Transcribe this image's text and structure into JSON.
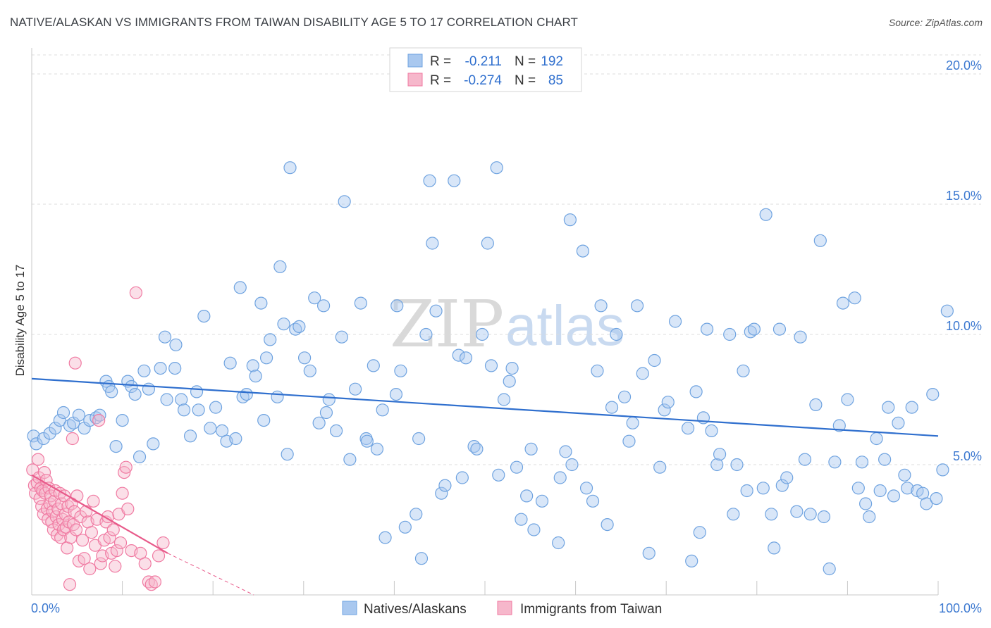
{
  "title": "NATIVE/ALASKAN VS IMMIGRANTS FROM TAIWAN DISABILITY AGE 5 TO 17 CORRELATION CHART",
  "source": "Source: ZipAtlas.com",
  "watermark": {
    "zip": "ZIP",
    "atlas": "atlas"
  },
  "colors": {
    "blue": "#6fa3e0",
    "blue_fill": "#a9c8ef",
    "blue_line": "#2f6fce",
    "pink": "#f07aa2",
    "pink_fill": "#f6b7cb",
    "pink_line": "#e85a8a",
    "tick_text": "#3b78d0"
  },
  "legend": {
    "r_label": "R =",
    "n_label": "N =",
    "rows": [
      {
        "r": "-0.211",
        "n": "192",
        "color": "blue"
      },
      {
        "r": "-0.274",
        "n": "85",
        "color": "pink"
      }
    ]
  },
  "bottom_legend": [
    {
      "label": "Natives/Alaskans",
      "color": "blue"
    },
    {
      "label": "Immigrants from Taiwan",
      "color": "pink"
    }
  ],
  "chart_data": {
    "type": "scatter",
    "title": "NATIVE/ALASKAN VS IMMIGRANTS FROM TAIWAN DISABILITY AGE 5 TO 17 CORRELATION CHART",
    "xlabel": "",
    "ylabel": "Disability Age 5 to 17",
    "xlim": [
      0,
      100
    ],
    "ylim": [
      0,
      21
    ],
    "x_ticks_labels": [
      "0.0%",
      "100.0%"
    ],
    "y_ticks": [
      5,
      10,
      15,
      20
    ],
    "y_ticks_labels": [
      "5.0%",
      "10.0%",
      "15.0%",
      "20.0%"
    ],
    "grid": "dashed horizontal",
    "legend_placement": "top-center",
    "series": [
      {
        "name": "Natives/Alaskans",
        "color": "blue",
        "trend": {
          "x0": 0,
          "y0": 8.3,
          "x1": 100,
          "y1": 6.1
        },
        "points": [
          [
            0.2,
            6.1
          ],
          [
            0.5,
            5.8
          ],
          [
            1.3,
            6.0
          ],
          [
            2.0,
            6.2
          ],
          [
            2.6,
            6.4
          ],
          [
            3.1,
            6.7
          ],
          [
            3.5,
            7.0
          ],
          [
            4.2,
            6.5
          ],
          [
            4.6,
            6.6
          ],
          [
            5.2,
            6.9
          ],
          [
            5.8,
            6.4
          ],
          [
            6.4,
            6.7
          ],
          [
            7.1,
            6.8
          ],
          [
            7.5,
            6.9
          ],
          [
            8.2,
            8.2
          ],
          [
            8.5,
            8.0
          ],
          [
            8.8,
            7.8
          ],
          [
            9.3,
            5.7
          ],
          [
            10.0,
            6.7
          ],
          [
            10.6,
            8.2
          ],
          [
            11.0,
            8.0
          ],
          [
            11.4,
            7.7
          ],
          [
            11.9,
            5.3
          ],
          [
            12.4,
            8.6
          ],
          [
            12.9,
            7.9
          ],
          [
            13.4,
            5.8
          ],
          [
            14.2,
            8.7
          ],
          [
            14.7,
            9.9
          ],
          [
            14.9,
            7.5
          ],
          [
            15.8,
            8.7
          ],
          [
            15.9,
            9.6
          ],
          [
            16.5,
            7.5
          ],
          [
            16.8,
            7.1
          ],
          [
            17.5,
            6.1
          ],
          [
            18.2,
            7.8
          ],
          [
            18.4,
            7.1
          ],
          [
            19.0,
            10.7
          ],
          [
            19.7,
            6.4
          ],
          [
            20.3,
            7.2
          ],
          [
            21.0,
            6.3
          ],
          [
            21.5,
            5.9
          ],
          [
            21.9,
            8.9
          ],
          [
            22.5,
            6.0
          ],
          [
            23.0,
            11.8
          ],
          [
            23.3,
            7.6
          ],
          [
            23.7,
            7.7
          ],
          [
            24.4,
            8.8
          ],
          [
            24.7,
            8.4
          ],
          [
            25.3,
            11.2
          ],
          [
            25.6,
            6.7
          ],
          [
            25.9,
            9.1
          ],
          [
            26.3,
            9.8
          ],
          [
            27.1,
            7.6
          ],
          [
            27.4,
            12.6
          ],
          [
            27.8,
            10.4
          ],
          [
            28.2,
            5.4
          ],
          [
            28.5,
            16.4
          ],
          [
            29.1,
            10.2
          ],
          [
            29.5,
            10.3
          ],
          [
            30.1,
            9.1
          ],
          [
            30.7,
            8.6
          ],
          [
            31.2,
            11.4
          ],
          [
            31.7,
            6.6
          ],
          [
            32.2,
            11.1
          ],
          [
            32.5,
            7.0
          ],
          [
            32.8,
            7.5
          ],
          [
            33.6,
            6.3
          ],
          [
            34.2,
            9.9
          ],
          [
            34.5,
            15.1
          ],
          [
            35.1,
            5.2
          ],
          [
            35.7,
            7.9
          ],
          [
            36.3,
            11.2
          ],
          [
            36.9,
            6.0
          ],
          [
            37.0,
            5.9
          ],
          [
            37.7,
            8.8
          ],
          [
            38.1,
            5.6
          ],
          [
            38.7,
            7.1
          ],
          [
            39.0,
            2.2
          ],
          [
            40.2,
            7.7
          ],
          [
            40.3,
            11.1
          ],
          [
            40.7,
            8.6
          ],
          [
            41.2,
            2.6
          ],
          [
            42.4,
            3.1
          ],
          [
            42.7,
            6.0
          ],
          [
            43.0,
            1.4
          ],
          [
            43.5,
            10.0
          ],
          [
            43.9,
            15.9
          ],
          [
            44.2,
            13.5
          ],
          [
            44.6,
            10.9
          ],
          [
            45.2,
            3.9
          ],
          [
            45.6,
            4.2
          ],
          [
            46.6,
            15.9
          ],
          [
            47.1,
            9.2
          ],
          [
            47.5,
            4.5
          ],
          [
            47.9,
            9.1
          ],
          [
            48.8,
            5.7
          ],
          [
            49.1,
            5.6
          ],
          [
            49.7,
            10.0
          ],
          [
            50.3,
            13.5
          ],
          [
            50.7,
            8.8
          ],
          [
            51.3,
            16.4
          ],
          [
            51.5,
            4.6
          ],
          [
            52.1,
            7.5
          ],
          [
            52.7,
            8.2
          ],
          [
            53.0,
            8.7
          ],
          [
            53.5,
            4.9
          ],
          [
            54.0,
            2.9
          ],
          [
            54.6,
            3.8
          ],
          [
            55.1,
            5.6
          ],
          [
            55.4,
            2.5
          ],
          [
            56.3,
            3.6
          ],
          [
            58.1,
            2.0
          ],
          [
            58.3,
            4.5
          ],
          [
            58.9,
            5.5
          ],
          [
            59.4,
            14.4
          ],
          [
            59.6,
            5.0
          ],
          [
            60.8,
            13.2
          ],
          [
            61.2,
            4.1
          ],
          [
            61.9,
            3.6
          ],
          [
            62.4,
            8.6
          ],
          [
            62.8,
            11.1
          ],
          [
            63.5,
            2.7
          ],
          [
            64.0,
            7.2
          ],
          [
            64.5,
            10.0
          ],
          [
            65.4,
            7.6
          ],
          [
            65.9,
            5.9
          ],
          [
            66.3,
            6.6
          ],
          [
            66.8,
            11.1
          ],
          [
            67.4,
            8.5
          ],
          [
            68.1,
            1.6
          ],
          [
            68.7,
            9.0
          ],
          [
            69.3,
            4.9
          ],
          [
            69.8,
            7.1
          ],
          [
            70.2,
            7.4
          ],
          [
            71.0,
            10.5
          ],
          [
            72.4,
            6.4
          ],
          [
            72.8,
            1.3
          ],
          [
            73.3,
            7.8
          ],
          [
            73.7,
            2.4
          ],
          [
            74.1,
            6.8
          ],
          [
            74.5,
            10.2
          ],
          [
            75.0,
            6.3
          ],
          [
            75.6,
            5.0
          ],
          [
            75.9,
            5.4
          ],
          [
            77.0,
            10.0
          ],
          [
            77.4,
            3.1
          ],
          [
            77.8,
            5.0
          ],
          [
            78.5,
            8.6
          ],
          [
            78.9,
            4.0
          ],
          [
            79.3,
            10.1
          ],
          [
            79.7,
            10.2
          ],
          [
            80.7,
            4.1
          ],
          [
            81.0,
            14.6
          ],
          [
            81.6,
            3.1
          ],
          [
            81.9,
            1.8
          ],
          [
            82.5,
            10.2
          ],
          [
            82.8,
            4.2
          ],
          [
            83.3,
            4.5
          ],
          [
            84.4,
            3.2
          ],
          [
            84.8,
            9.9
          ],
          [
            85.3,
            5.2
          ],
          [
            85.9,
            3.1
          ],
          [
            86.5,
            7.3
          ],
          [
            87.0,
            13.6
          ],
          [
            87.4,
            3.0
          ],
          [
            88.0,
            1.0
          ],
          [
            88.6,
            5.1
          ],
          [
            89.1,
            6.5
          ],
          [
            89.5,
            11.2
          ],
          [
            90.0,
            7.5
          ],
          [
            90.8,
            11.4
          ],
          [
            91.2,
            4.1
          ],
          [
            91.6,
            5.1
          ],
          [
            92.0,
            3.5
          ],
          [
            92.4,
            3.0
          ],
          [
            93.2,
            6.0
          ],
          [
            93.6,
            4.0
          ],
          [
            94.1,
            5.2
          ],
          [
            94.5,
            7.2
          ],
          [
            95.1,
            3.8
          ],
          [
            95.6,
            6.6
          ],
          [
            96.3,
            4.6
          ],
          [
            96.6,
            4.1
          ],
          [
            97.1,
            7.2
          ],
          [
            97.7,
            4.0
          ],
          [
            98.3,
            3.9
          ],
          [
            98.7,
            3.5
          ],
          [
            99.4,
            7.7
          ],
          [
            99.8,
            3.7
          ],
          [
            100.5,
            4.8
          ],
          [
            101.0,
            10.9
          ]
        ]
      },
      {
        "name": "Immigrants from Taiwan",
        "color": "pink",
        "trend": {
          "x0": 0,
          "y0": 4.6,
          "x1": 15,
          "y1": 1.6
        },
        "trend_dashed_to": {
          "x": 24.5,
          "y": 0.0
        },
        "points": [
          [
            0.1,
            4.8
          ],
          [
            0.3,
            4.2
          ],
          [
            0.4,
            3.9
          ],
          [
            0.6,
            4.3
          ],
          [
            0.7,
            5.2
          ],
          [
            0.8,
            4.5
          ],
          [
            0.9,
            3.7
          ],
          [
            1.0,
            4.1
          ],
          [
            1.1,
            3.4
          ],
          [
            1.2,
            4.0
          ],
          [
            1.3,
            3.1
          ],
          [
            1.4,
            4.7
          ],
          [
            1.5,
            3.9
          ],
          [
            1.6,
            4.4
          ],
          [
            1.7,
            3.3
          ],
          [
            1.8,
            2.9
          ],
          [
            1.9,
            4.1
          ],
          [
            2.0,
            3.5
          ],
          [
            2.1,
            3.8
          ],
          [
            2.2,
            2.8
          ],
          [
            2.3,
            3.2
          ],
          [
            2.4,
            2.5
          ],
          [
            2.5,
            3.6
          ],
          [
            2.6,
            4.0
          ],
          [
            2.7,
            3.0
          ],
          [
            2.8,
            2.3
          ],
          [
            2.9,
            3.3
          ],
          [
            3.0,
            2.7
          ],
          [
            3.1,
            3.9
          ],
          [
            3.2,
            2.2
          ],
          [
            3.3,
            3.5
          ],
          [
            3.4,
            2.9
          ],
          [
            3.5,
            2.5
          ],
          [
            3.6,
            3.8
          ],
          [
            3.7,
            3.1
          ],
          [
            3.8,
            2.6
          ],
          [
            3.9,
            1.8
          ],
          [
            4.0,
            3.4
          ],
          [
            4.1,
            2.8
          ],
          [
            4.2,
            0.4
          ],
          [
            4.3,
            2.2
          ],
          [
            4.4,
            3.5
          ],
          [
            4.5,
            6.0
          ],
          [
            4.6,
            2.7
          ],
          [
            4.7,
            3.2
          ],
          [
            4.8,
            8.9
          ],
          [
            4.9,
            2.5
          ],
          [
            5.0,
            3.8
          ],
          [
            5.2,
            1.3
          ],
          [
            5.4,
            3.0
          ],
          [
            5.6,
            2.1
          ],
          [
            5.8,
            1.4
          ],
          [
            6.0,
            3.2
          ],
          [
            6.2,
            2.8
          ],
          [
            6.4,
            1.0
          ],
          [
            6.6,
            2.4
          ],
          [
            6.8,
            3.6
          ],
          [
            7.0,
            1.9
          ],
          [
            7.2,
            2.9
          ],
          [
            7.4,
            6.7
          ],
          [
            7.6,
            1.2
          ],
          [
            7.8,
            1.5
          ],
          [
            8.0,
            2.1
          ],
          [
            8.2,
            2.8
          ],
          [
            8.4,
            3.0
          ],
          [
            8.6,
            2.2
          ],
          [
            8.8,
            1.6
          ],
          [
            9.0,
            2.5
          ],
          [
            9.2,
            1.1
          ],
          [
            9.4,
            1.7
          ],
          [
            9.6,
            3.1
          ],
          [
            9.8,
            2.0
          ],
          [
            10.0,
            3.9
          ],
          [
            10.2,
            4.7
          ],
          [
            10.4,
            4.9
          ],
          [
            10.6,
            3.3
          ],
          [
            11.0,
            1.7
          ],
          [
            11.5,
            11.6
          ],
          [
            12.0,
            1.6
          ],
          [
            12.5,
            1.2
          ],
          [
            12.9,
            0.5
          ],
          [
            13.2,
            0.4
          ],
          [
            13.6,
            0.5
          ],
          [
            14.0,
            1.5
          ],
          [
            14.5,
            2.0
          ]
        ]
      }
    ]
  }
}
